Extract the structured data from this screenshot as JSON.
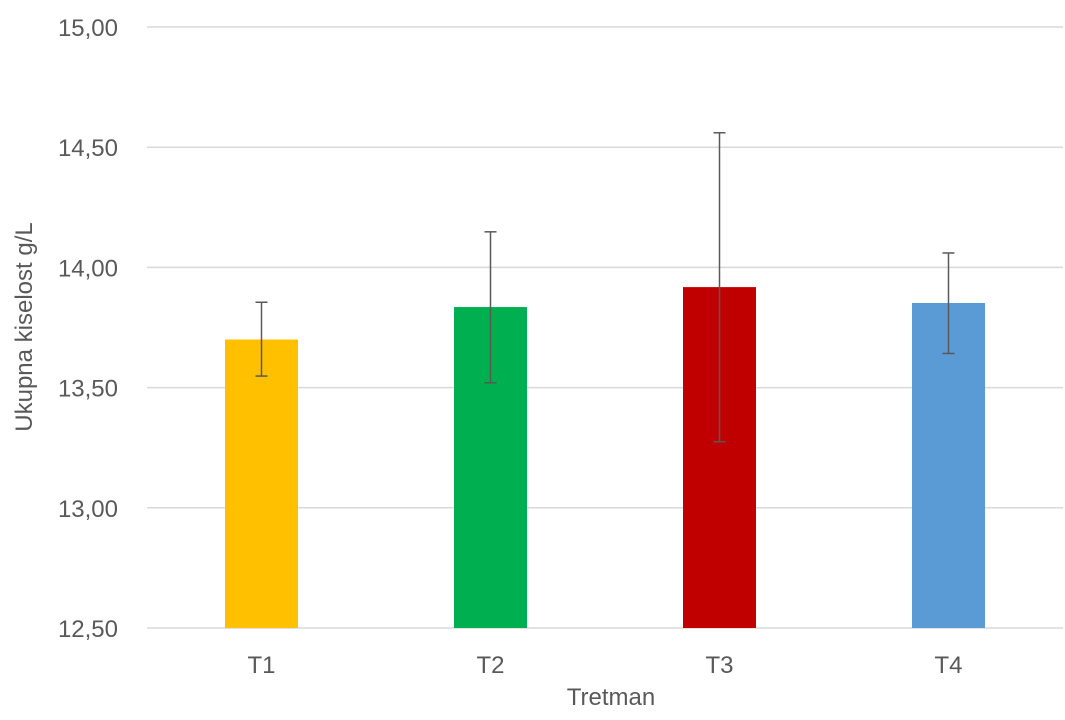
{
  "chart_data": {
    "type": "bar",
    "categories": [
      "T1",
      "T2",
      "T3",
      "T4"
    ],
    "values": [
      13.7,
      13.835,
      13.918,
      13.852
    ],
    "error_low": [
      13.548,
      13.52,
      13.275,
      13.642
    ],
    "error_high": [
      13.855,
      14.148,
      14.56,
      14.06
    ],
    "colors": [
      "#FFC000",
      "#00B050",
      "#C00000",
      "#5B9BD5"
    ],
    "xlabel": "Tretman",
    "ylabel": "Ukupna kiselost  g/L",
    "ylim": [
      12.5,
      15.0
    ],
    "yticks": [
      12.5,
      13.0,
      13.5,
      14.0,
      14.5,
      15.0
    ],
    "ytick_labels": [
      "12,50",
      "13,00",
      "13,50",
      "14,00",
      "14,50",
      "15,00"
    ],
    "grid": true,
    "legend": "none"
  }
}
